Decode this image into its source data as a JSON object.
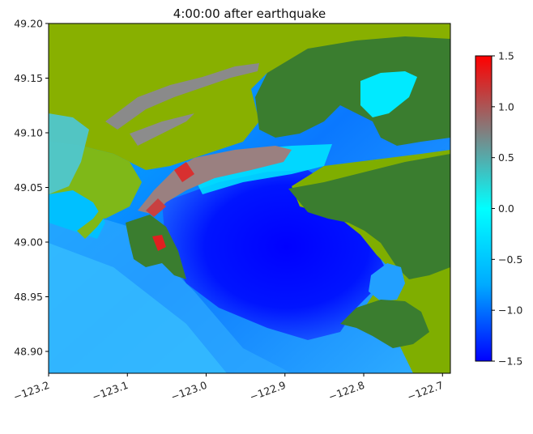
{
  "chart_data": {
    "type": "heatmap",
    "title": "4:00:00 after earthquake",
    "xlabel": "",
    "ylabel": "",
    "xlim": [
      -123.2,
      -122.69
    ],
    "ylim": [
      48.88,
      49.2
    ],
    "x_ticks": [
      -123.2,
      -123.1,
      -123.0,
      -122.9,
      -122.8,
      -122.7
    ],
    "x_tick_labels": [
      "−123.2",
      "−123.1",
      "−123.0",
      "−122.9",
      "−122.8",
      "−122.7"
    ],
    "y_ticks": [
      48.9,
      48.95,
      49.0,
      49.05,
      49.1,
      49.15,
      49.2
    ],
    "y_tick_labels": [
      "48.90",
      "48.95",
      "49.00",
      "49.05",
      "49.10",
      "49.15",
      "49.20"
    ],
    "colorbar": {
      "range": [
        -1.5,
        1.5
      ],
      "ticks": [
        1.5,
        1.0,
        0.5,
        0.0,
        -0.5,
        -1.0,
        -1.5
      ],
      "tick_labels": [
        "1.5",
        "1.0",
        "0.5",
        "0.0",
        "−0.5",
        "−1.0",
        "−1.5"
      ],
      "colors": [
        "#0000ff",
        "#00aaff",
        "#00ffff",
        "#808080",
        "#ff0000"
      ]
    },
    "land_colors": {
      "dry_land": "#3a7d2f",
      "wet_land": "#88b000"
    },
    "grid": false
  }
}
